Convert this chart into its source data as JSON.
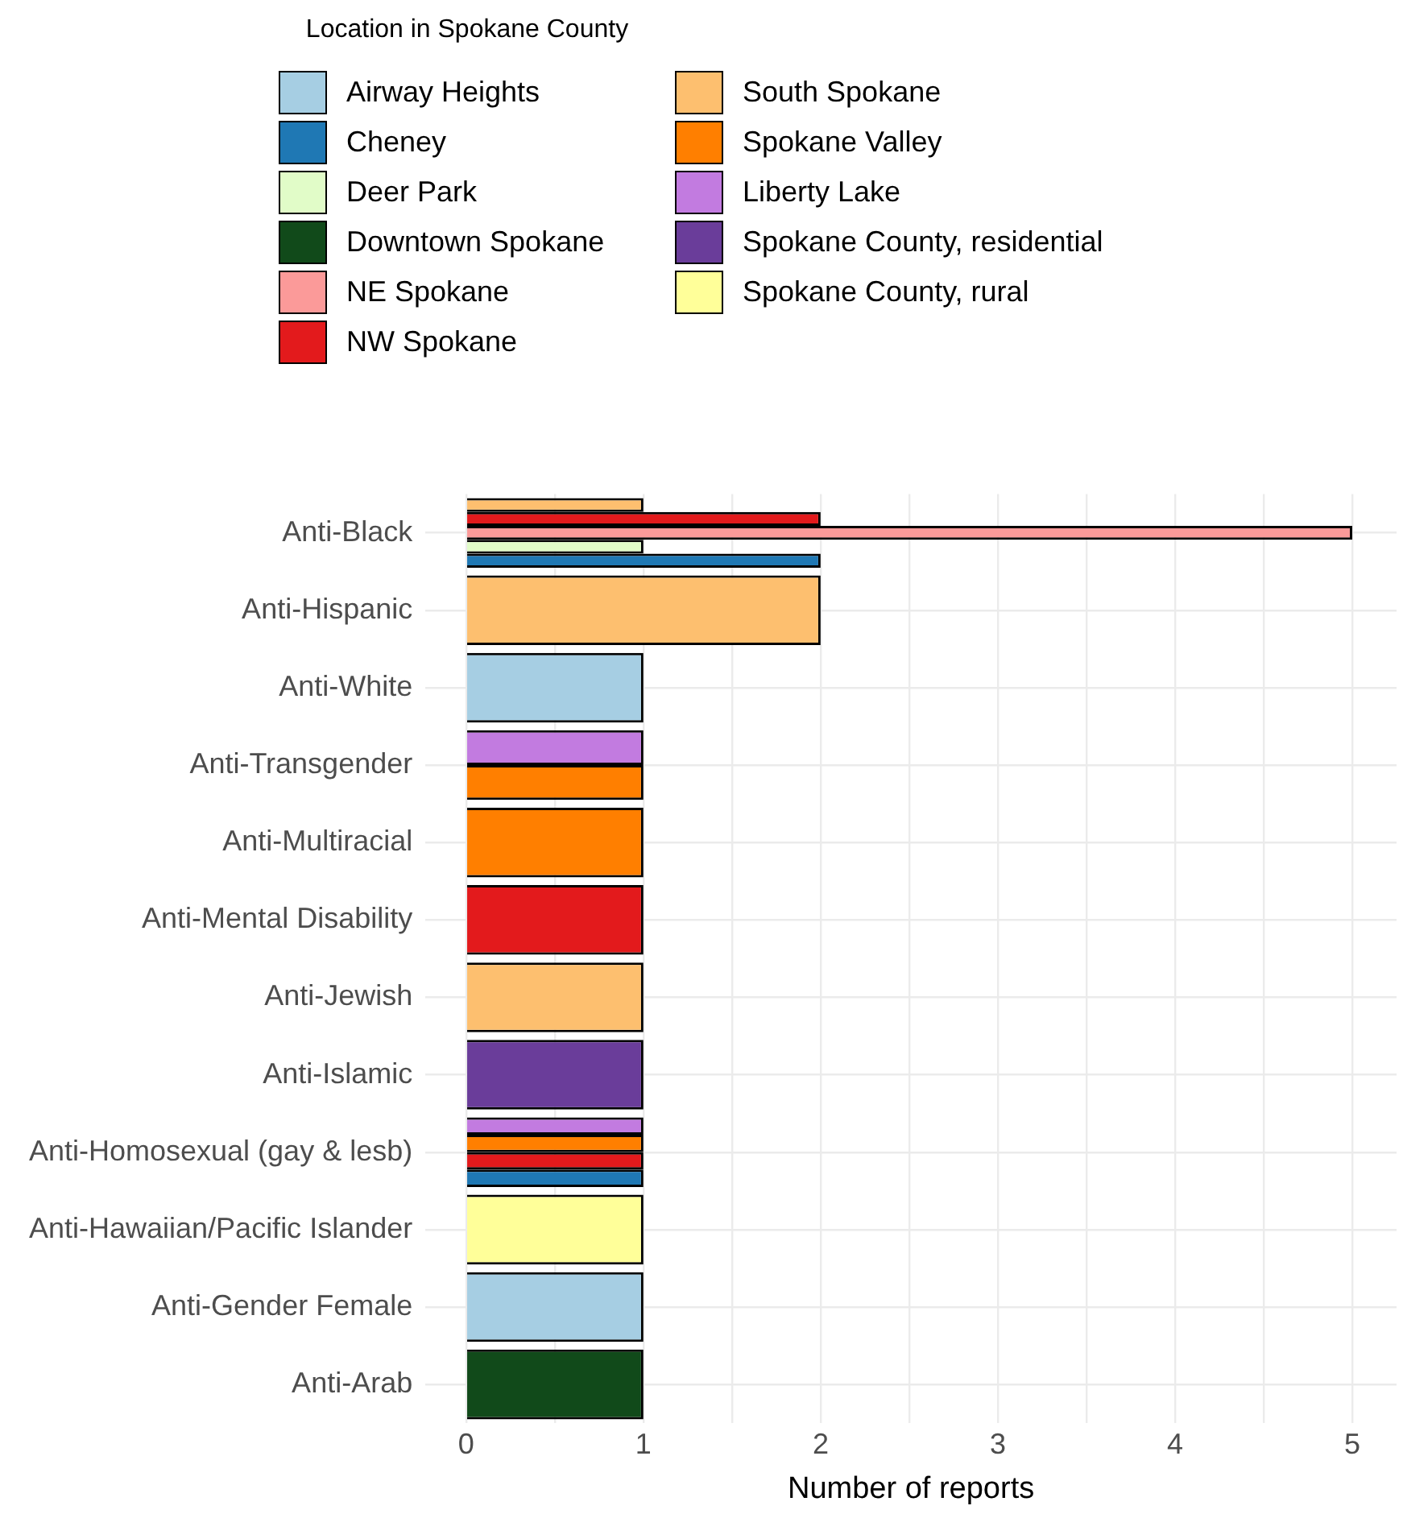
{
  "chart_data": {
    "type": "bar",
    "orientation": "horizontal",
    "xlabel": "Number of reports",
    "legend_title": "Location in Spokane County",
    "legend": "top",
    "grid": true,
    "categories": [
      "Anti-Black",
      "Anti-Hispanic",
      "Anti-White",
      "Anti-Transgender",
      "Anti-Multiracial",
      "Anti-Mental Disability",
      "Anti-Jewish",
      "Anti-Islamic",
      "Anti-Homosexual (gay & lesb)",
      "Anti-Hawaiian/Pacific Islander",
      "Anti-Gender Female",
      "Anti-Arab"
    ],
    "xlim": [
      -0.23,
      5.25
    ],
    "xticks": [
      0,
      {
        "value": 0.5,
        "label": null
      },
      1,
      {
        "value": 1.5,
        "label": null
      },
      2,
      {
        "value": 2.5,
        "label": null
      },
      3,
      {
        "value": 3.5,
        "label": null
      },
      4,
      {
        "value": 4.5,
        "label": null
      },
      5
    ],
    "series": [
      {
        "name": "Airway Heights",
        "color": "#a6cee3",
        "values": [
          null,
          null,
          1,
          null,
          null,
          null,
          null,
          null,
          null,
          null,
          1,
          null
        ]
      },
      {
        "name": "Cheney",
        "color": "#1f78b4",
        "values": [
          2,
          null,
          null,
          null,
          null,
          null,
          null,
          null,
          1,
          null,
          null,
          null
        ]
      },
      {
        "name": "Deer Park",
        "color": "#e1fcc8",
        "values": [
          1,
          null,
          null,
          null,
          null,
          null,
          null,
          null,
          null,
          null,
          null,
          null
        ]
      },
      {
        "name": "Downtown Spokane",
        "color": "#114a1a",
        "values": [
          null,
          null,
          null,
          null,
          null,
          null,
          null,
          null,
          null,
          null,
          null,
          1
        ]
      },
      {
        "name": "NE Spokane",
        "color": "#fb9a99",
        "values": [
          5,
          null,
          null,
          null,
          null,
          null,
          null,
          null,
          null,
          null,
          null,
          null
        ]
      },
      {
        "name": "NW Spokane",
        "color": "#e31a1c",
        "values": [
          2,
          null,
          null,
          null,
          null,
          1,
          null,
          null,
          1,
          null,
          null,
          null
        ]
      },
      {
        "name": "South Spokane",
        "color": "#fdbf6f",
        "values": [
          1,
          2,
          null,
          null,
          null,
          null,
          1,
          null,
          null,
          null,
          null,
          null
        ]
      },
      {
        "name": "Spokane Valley",
        "color": "#ff7f00",
        "values": [
          null,
          null,
          null,
          1,
          1,
          null,
          null,
          null,
          1,
          null,
          null,
          null
        ]
      },
      {
        "name": "Liberty Lake",
        "color": "#c27be0",
        "values": [
          null,
          null,
          null,
          1,
          null,
          null,
          null,
          null,
          1,
          null,
          null,
          null
        ]
      },
      {
        "name": "Spokane County, residential",
        "color": "#6a3d9a",
        "values": [
          null,
          null,
          null,
          null,
          null,
          null,
          null,
          1,
          null,
          null,
          null,
          null
        ]
      },
      {
        "name": "Spokane County, rural",
        "color": "#ffff99",
        "values": [
          null,
          null,
          null,
          null,
          null,
          null,
          null,
          null,
          null,
          1,
          null,
          null
        ]
      }
    ]
  }
}
